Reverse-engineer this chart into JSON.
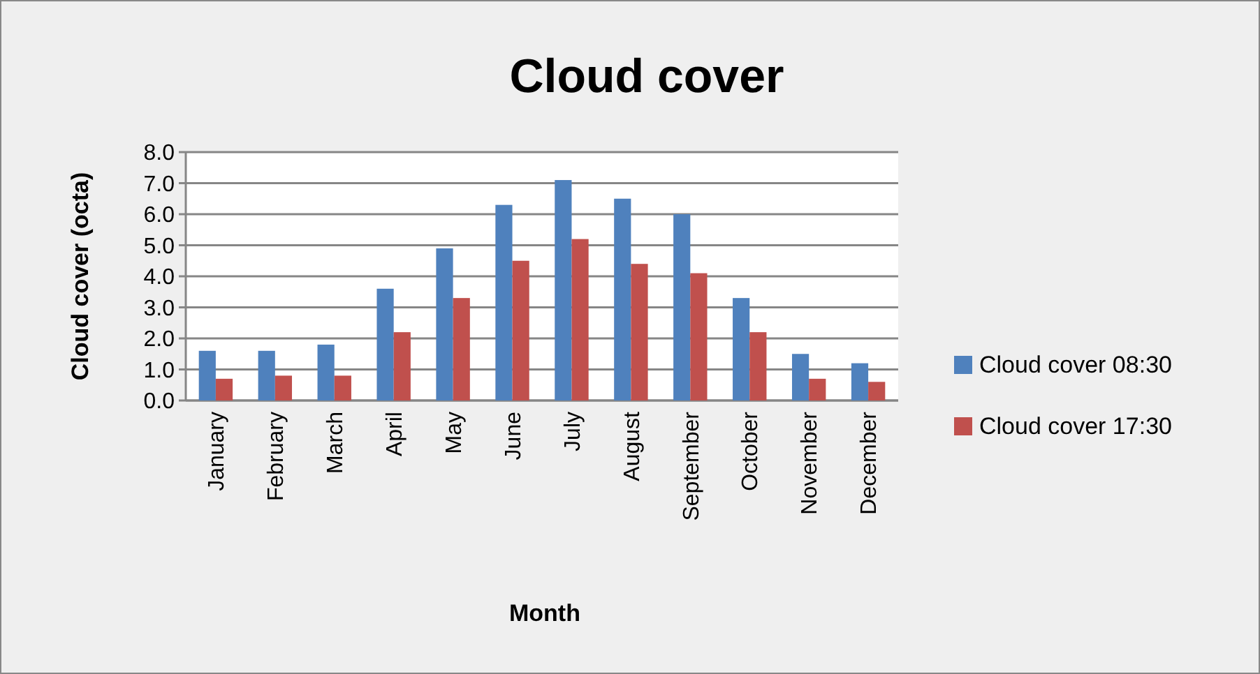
{
  "chart_data": {
    "type": "bar",
    "title": "Cloud cover",
    "xlabel": "Month",
    "ylabel": "Cloud cover (octa)",
    "categories": [
      "January",
      "February",
      "March",
      "April",
      "May",
      "June",
      "July",
      "August",
      "September",
      "October",
      "November",
      "December"
    ],
    "series": [
      {
        "name": "Cloud cover 08:30",
        "color": "#4f81bd",
        "values": [
          1.6,
          1.6,
          1.8,
          3.6,
          4.9,
          6.3,
          7.1,
          6.5,
          6.0,
          3.3,
          1.5,
          1.2
        ]
      },
      {
        "name": "Cloud cover 17:30",
        "color": "#c0504d",
        "values": [
          0.7,
          0.8,
          0.8,
          2.2,
          3.3,
          4.5,
          5.2,
          4.4,
          4.1,
          2.2,
          0.7,
          0.6
        ]
      }
    ],
    "ylim": [
      0,
      8
    ],
    "yticks": [
      {
        "value": 0,
        "label": "0.0"
      },
      {
        "value": 1,
        "label": "1.0"
      },
      {
        "value": 2,
        "label": "2.0"
      },
      {
        "value": 3,
        "label": "3.0"
      },
      {
        "value": 4,
        "label": "4.0"
      },
      {
        "value": 5,
        "label": "5.0"
      },
      {
        "value": 6,
        "label": "6.0"
      },
      {
        "value": 7,
        "label": "7.0"
      },
      {
        "value": 8,
        "label": "8.0"
      }
    ],
    "grid": "y",
    "legend": "right"
  }
}
